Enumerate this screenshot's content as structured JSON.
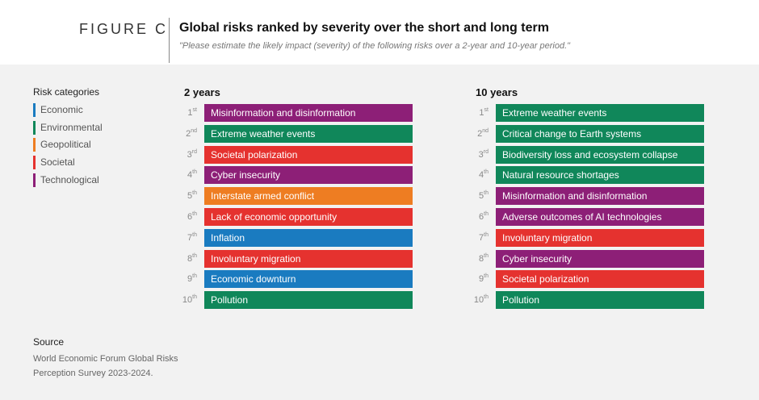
{
  "header": {
    "figure_label": "FIGURE C",
    "title": "Global risks ranked by severity over the short and long term",
    "subtitle": "\"Please estimate the likely impact (severity) of the following risks over a 2-year and 10-year period.\""
  },
  "legend": {
    "title": "Risk categories",
    "items": [
      {
        "label": "Economic",
        "color": "#1a7bc0"
      },
      {
        "label": "Environmental",
        "color": "#10875a"
      },
      {
        "label": "Geopolitical",
        "color": "#ee7d22"
      },
      {
        "label": "Societal",
        "color": "#e5322f"
      },
      {
        "label": "Technological",
        "color": "#8d1f77"
      }
    ]
  },
  "chart_data": {
    "type": "table",
    "rank_labels": [
      {
        "n": "1",
        "sup": "st"
      },
      {
        "n": "2",
        "sup": "nd"
      },
      {
        "n": "3",
        "sup": "rd"
      },
      {
        "n": "4",
        "sup": "th"
      },
      {
        "n": "5",
        "sup": "th"
      },
      {
        "n": "6",
        "sup": "th"
      },
      {
        "n": "7",
        "sup": "th"
      },
      {
        "n": "8",
        "sup": "th"
      },
      {
        "n": "9",
        "sup": "th"
      },
      {
        "n": "10",
        "sup": "th"
      }
    ],
    "panels": [
      {
        "title": "2 years",
        "risks": [
          {
            "label": "Misinformation and disinformation",
            "category": "Technological"
          },
          {
            "label": "Extreme weather events",
            "category": "Environmental"
          },
          {
            "label": "Societal polarization",
            "category": "Societal"
          },
          {
            "label": "Cyber insecurity",
            "category": "Technological"
          },
          {
            "label": "Interstate armed conflict",
            "category": "Geopolitical"
          },
          {
            "label": "Lack of economic opportunity",
            "category": "Societal"
          },
          {
            "label": "Inflation",
            "category": "Economic"
          },
          {
            "label": "Involuntary migration",
            "category": "Societal"
          },
          {
            "label": "Economic downturn",
            "category": "Economic"
          },
          {
            "label": "Pollution",
            "category": "Environmental"
          }
        ]
      },
      {
        "title": "10 years",
        "risks": [
          {
            "label": "Extreme weather events",
            "category": "Environmental"
          },
          {
            "label": "Critical change to Earth systems",
            "category": "Environmental"
          },
          {
            "label": "Biodiversity loss and ecosystem collapse",
            "category": "Environmental"
          },
          {
            "label": "Natural resource shortages",
            "category": "Environmental"
          },
          {
            "label": "Misinformation and disinformation",
            "category": "Technological"
          },
          {
            "label": "Adverse outcomes of AI technologies",
            "category": "Technological"
          },
          {
            "label": "Involuntary migration",
            "category": "Societal"
          },
          {
            "label": "Cyber insecurity",
            "category": "Technological"
          },
          {
            "label": "Societal polarization",
            "category": "Societal"
          },
          {
            "label": "Pollution",
            "category": "Environmental"
          }
        ]
      }
    ]
  },
  "source": {
    "title": "Source",
    "text": "World Economic Forum Global Risks Perception Survey 2023-2024."
  }
}
